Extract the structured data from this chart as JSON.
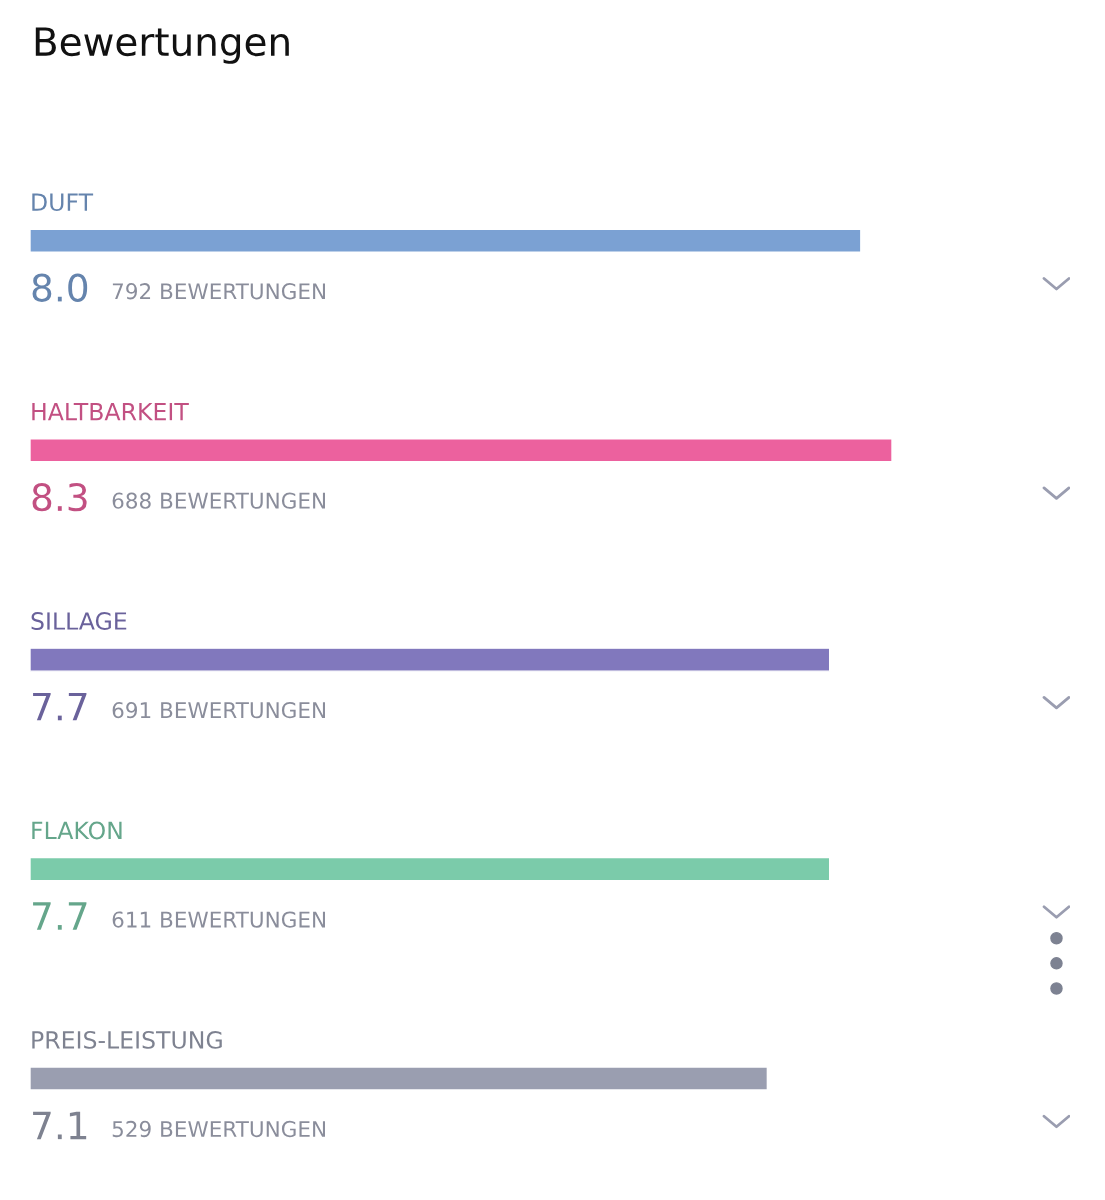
{
  "chart_data": {
    "type": "bar",
    "orientation": "horizontal",
    "title": "Bewertungen",
    "categories": [
      "DUFT",
      "HALTBARKEIT",
      "SILLAGE",
      "FLAKON",
      "PREIS-LEISTUNG"
    ],
    "values": [
      8.0,
      8.3,
      7.7,
      7.7,
      7.1
    ],
    "colors": [
      "#7ba1d3",
      "#ec619e",
      "#8178bd",
      "#7bcbaa",
      "#9a9eb0"
    ],
    "value_labels": [
      "8.0",
      "8.3",
      "7.7",
      "7.7",
      "7.1"
    ],
    "annotations": [
      "792 BEWERTUNGEN",
      "688 BEWERTUNGEN",
      "691 BEWERTUNGEN",
      "611 BEWERTUNGEN",
      "529 BEWERTUNGEN"
    ],
    "tick_labels": false,
    "grid": false,
    "legend": false
  }
}
